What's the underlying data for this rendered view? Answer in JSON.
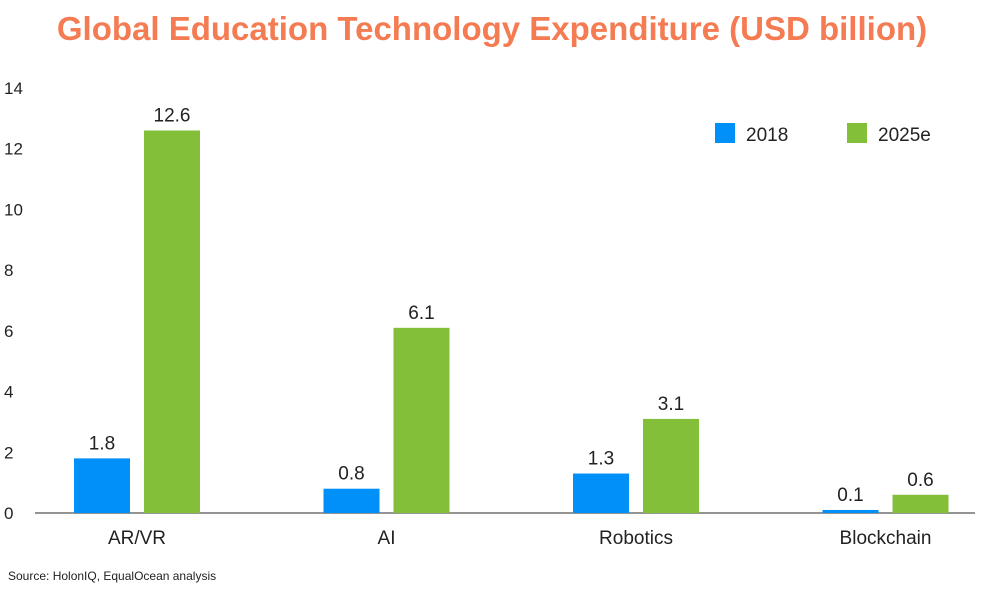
{
  "chart_data": {
    "type": "bar",
    "title": "Global Education Technology Expenditure (USD billion)",
    "xlabel": "",
    "ylabel": "",
    "categories": [
      "AR/VR",
      "AI",
      "Robotics",
      "Blockchain"
    ],
    "series": [
      {
        "name": "2018",
        "color": "#0090f8",
        "values": [
          1.8,
          0.8,
          1.3,
          0.1
        ],
        "labels": [
          "1.8",
          "0.8",
          "1.3",
          "0.1"
        ]
      },
      {
        "name": "2025e",
        "color": "#83bf38",
        "values": [
          12.6,
          6.1,
          3.1,
          0.6
        ],
        "labels": [
          "12.6",
          "6.1",
          "3.1",
          "0.6"
        ]
      }
    ],
    "ylim": [
      0,
      14
    ],
    "yticks": [
      0,
      2,
      4,
      6,
      8,
      10,
      12,
      14
    ],
    "grid": false,
    "legend_position": "top-right",
    "source": "Source: HolonIQ, EqualOcean analysis"
  }
}
